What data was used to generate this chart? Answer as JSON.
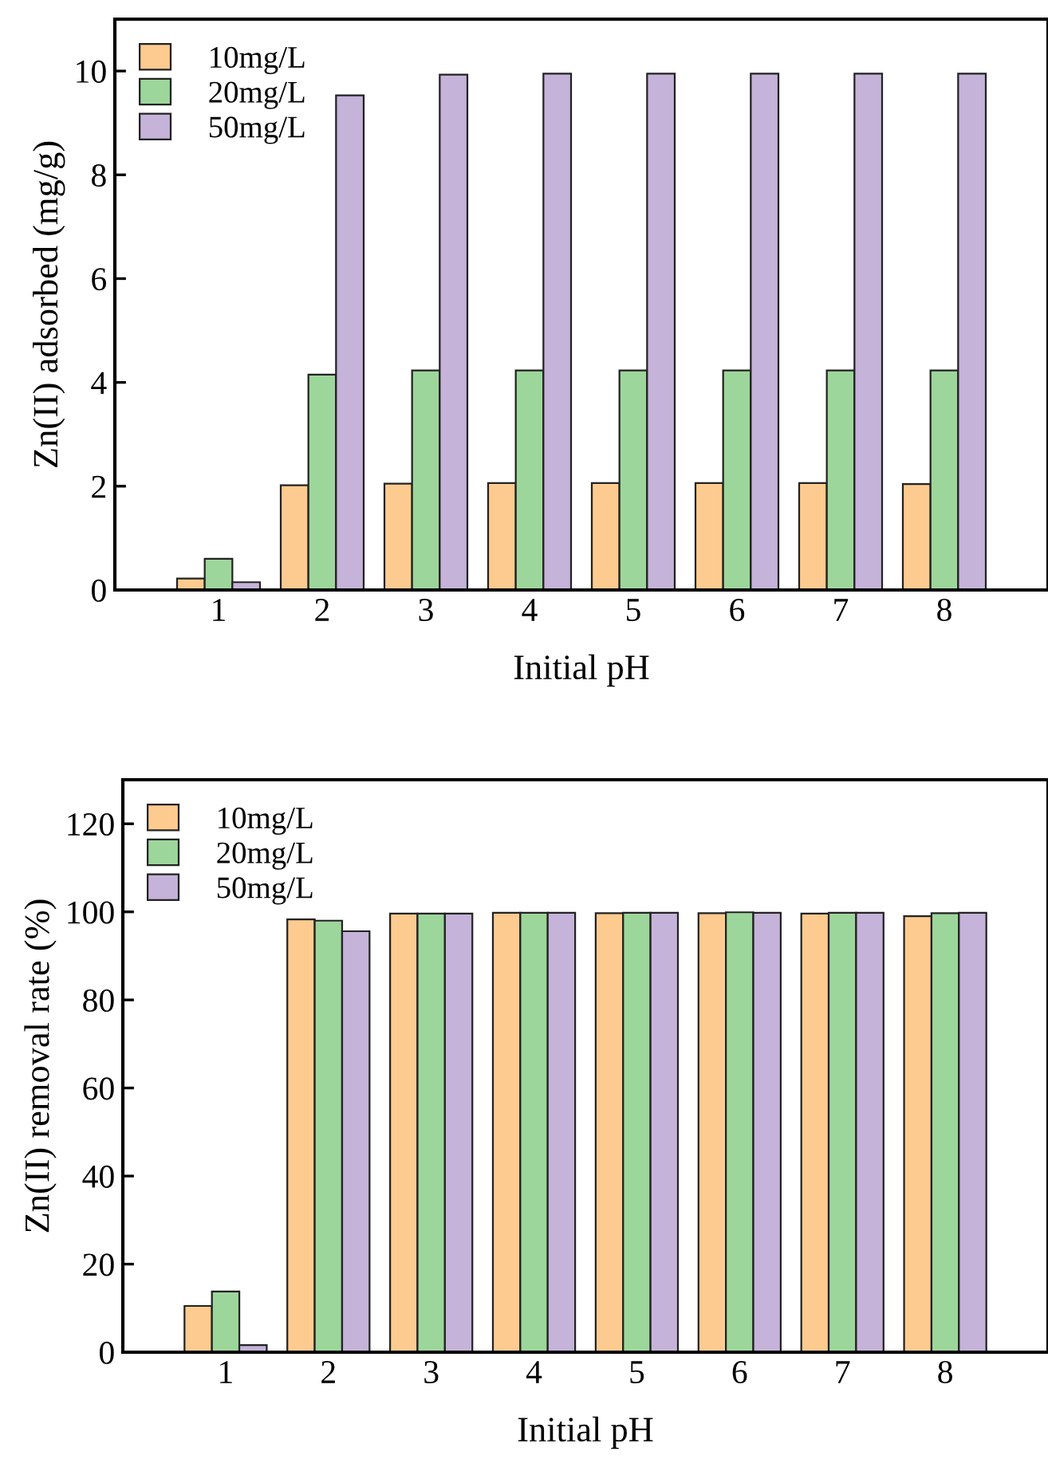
{
  "chart_data": [
    {
      "type": "bar",
      "xlabel": "Initial pH",
      "ylabel": "Zn(II) adsorbed (mg/g)",
      "categories": [
        "1",
        "2",
        "3",
        "4",
        "5",
        "6",
        "7",
        "8"
      ],
      "series": [
        {
          "name": "10mg/L",
          "color": "#fdcb8f",
          "values": [
            0.22,
            2.02,
            2.05,
            2.06,
            2.06,
            2.06,
            2.06,
            2.04
          ]
        },
        {
          "name": "20mg/L",
          "color": "#9dd69b",
          "values": [
            0.6,
            4.15,
            4.23,
            4.23,
            4.23,
            4.23,
            4.23,
            4.23
          ]
        },
        {
          "name": "50mg/L",
          "color": "#c5b3d9",
          "values": [
            0.15,
            9.53,
            9.93,
            9.95,
            9.95,
            9.95,
            9.95,
            9.95
          ]
        }
      ],
      "ylim": [
        0,
        11
      ],
      "yticks": [
        0,
        2,
        4,
        6,
        8,
        10
      ],
      "grid": false,
      "legend": "top left"
    },
    {
      "type": "bar",
      "xlabel": "Initial pH",
      "ylabel": "Zn(II) removal rate (%)",
      "categories": [
        "1",
        "2",
        "3",
        "4",
        "5",
        "6",
        "7",
        "8"
      ],
      "series": [
        {
          "name": "10mg/L",
          "color": "#fdcb8f",
          "values": [
            10.5,
            98.3,
            99.6,
            99.8,
            99.7,
            99.7,
            99.6,
            99.0
          ]
        },
        {
          "name": "20mg/L",
          "color": "#9dd69b",
          "values": [
            13.8,
            98.0,
            99.6,
            99.8,
            99.8,
            99.9,
            99.8,
            99.7
          ]
        },
        {
          "name": "50mg/L",
          "color": "#c5b3d9",
          "values": [
            1.6,
            95.6,
            99.6,
            99.8,
            99.8,
            99.8,
            99.8,
            99.8
          ]
        }
      ],
      "ylim": [
        0,
        130
      ],
      "yticks": [
        0,
        20,
        40,
        60,
        80,
        100,
        120
      ],
      "grid": false,
      "legend": "top left"
    }
  ]
}
